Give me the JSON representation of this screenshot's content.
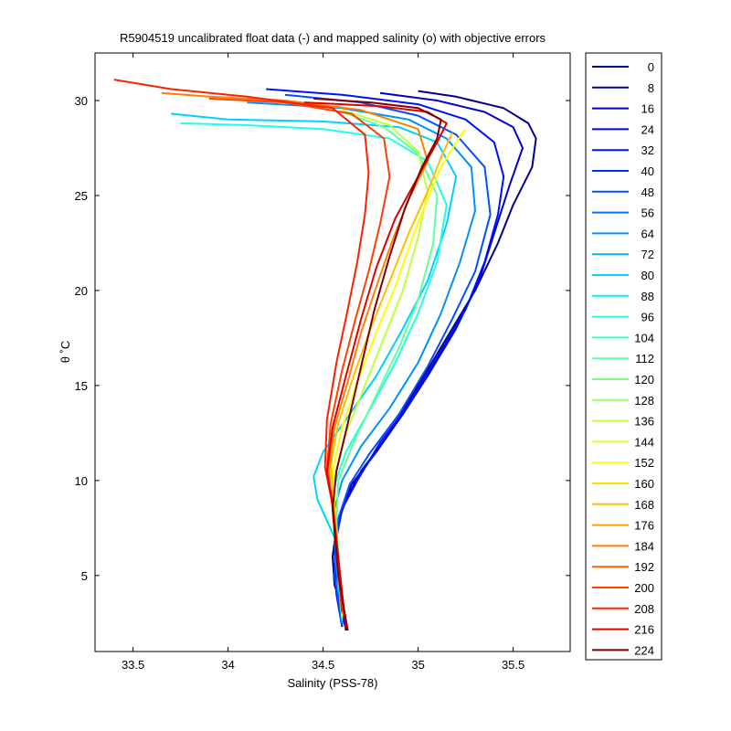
{
  "chart_data": {
    "type": "line",
    "title": "R5904519 uncalibrated float data (-) and mapped salinity (o) with objective errors",
    "xlabel": "Salinity (PSS-78)",
    "ylabel": "θ ˚C",
    "xlim": [
      33.3,
      35.8
    ],
    "ylim": [
      1.0,
      32.5
    ],
    "xticks": [
      33.5,
      34,
      34.5,
      35,
      35.5
    ],
    "xtick_labels": [
      "33.5",
      "34",
      "34.5",
      "35",
      "35.5"
    ],
    "yticks": [
      5,
      10,
      15,
      20,
      25,
      30
    ],
    "ytick_labels": [
      "5",
      "10",
      "15",
      "20",
      "25",
      "30"
    ],
    "grid": false,
    "legend_position": "outside-right",
    "colormap": "jet",
    "legend": [
      {
        "label": "0",
        "color": "#00008f"
      },
      {
        "label": "8",
        "color": "#0000b0"
      },
      {
        "label": "16",
        "color": "#0000d0"
      },
      {
        "label": "24",
        "color": "#0000f0"
      },
      {
        "label": "32",
        "color": "#0010ff"
      },
      {
        "label": "40",
        "color": "#0030ff"
      },
      {
        "label": "48",
        "color": "#0050ff"
      },
      {
        "label": "56",
        "color": "#0070ff"
      },
      {
        "label": "64",
        "color": "#0090ff"
      },
      {
        "label": "72",
        "color": "#00b0ff"
      },
      {
        "label": "80",
        "color": "#00d0ff"
      },
      {
        "label": "88",
        "color": "#00f0ff"
      },
      {
        "label": "96",
        "color": "#20ffdf"
      },
      {
        "label": "104",
        "color": "#40ffbf"
      },
      {
        "label": "112",
        "color": "#60ff9f"
      },
      {
        "label": "120",
        "color": "#80ff80"
      },
      {
        "label": "128",
        "color": "#9fff60"
      },
      {
        "label": "136",
        "color": "#bfff40"
      },
      {
        "label": "144",
        "color": "#dfff20"
      },
      {
        "label": "152",
        "color": "#ffff00"
      },
      {
        "label": "160",
        "color": "#ffdf00"
      },
      {
        "label": "168",
        "color": "#ffbf00"
      },
      {
        "label": "176",
        "color": "#ff9f00"
      },
      {
        "label": "184",
        "color": "#ff8000"
      },
      {
        "label": "192",
        "color": "#ff6000"
      },
      {
        "label": "200",
        "color": "#ff4000"
      },
      {
        "label": "208",
        "color": "#ff2000"
      },
      {
        "label": "216",
        "color": "#df0000"
      },
      {
        "label": "224",
        "color": "#800000"
      }
    ],
    "series": [
      {
        "legend_index": 0,
        "x": [
          34.62,
          34.6,
          34.56,
          34.55,
          34.57,
          34.62,
          34.7,
          34.85,
          35.0,
          35.15,
          35.3,
          35.42,
          35.5,
          35.6,
          35.62,
          35.58,
          35.45,
          35.2,
          35.0
        ],
        "y": [
          2.1,
          3.3,
          4.5,
          6.0,
          7.5,
          9.0,
          10.5,
          12.5,
          15.0,
          17.5,
          20.0,
          22.5,
          24.5,
          26.5,
          28.0,
          28.8,
          29.6,
          30.2,
          30.5
        ]
      },
      {
        "legend_index": 2,
        "x": [
          34.62,
          34.58,
          34.56,
          34.57,
          34.6,
          34.65,
          34.78,
          34.92,
          35.05,
          35.2,
          35.32,
          35.4,
          35.48,
          35.55,
          35.5,
          35.35,
          35.1,
          34.8
        ],
        "y": [
          2.2,
          3.5,
          5.0,
          7.0,
          8.5,
          9.8,
          11.5,
          13.5,
          15.5,
          18.0,
          20.5,
          23.0,
          25.5,
          27.5,
          28.6,
          29.4,
          30.0,
          30.4
        ]
      },
      {
        "legend_index": 4,
        "x": [
          34.6,
          34.57,
          34.56,
          34.6,
          34.68,
          34.8,
          34.95,
          35.1,
          35.25,
          35.35,
          35.42,
          35.45,
          35.4,
          35.25,
          35.0,
          34.6,
          34.2
        ],
        "y": [
          2.3,
          4.0,
          6.5,
          8.5,
          10.0,
          12.0,
          14.0,
          16.5,
          19.0,
          21.5,
          24.0,
          26.0,
          27.8,
          29.0,
          29.8,
          30.3,
          30.6
        ]
      },
      {
        "legend_index": 6,
        "x": [
          34.6,
          34.56,
          34.58,
          34.64,
          34.75,
          34.9,
          35.05,
          35.18,
          35.3,
          35.38,
          35.35,
          35.2,
          35.0,
          34.7,
          34.3
        ],
        "y": [
          2.4,
          5.0,
          8.0,
          9.8,
          11.5,
          13.5,
          16.0,
          18.5,
          21.0,
          24.0,
          26.5,
          28.2,
          29.2,
          29.9,
          30.3
        ]
      },
      {
        "legend_index": 8,
        "x": [
          34.6,
          34.57,
          34.56,
          34.6,
          34.7,
          34.85,
          35.0,
          35.12,
          35.22,
          35.3,
          35.28,
          35.15,
          34.95,
          34.6,
          34.1
        ],
        "y": [
          2.5,
          5.5,
          8.5,
          10.0,
          11.8,
          13.8,
          16.2,
          18.8,
          21.5,
          24.2,
          26.5,
          28.0,
          29.0,
          29.6,
          29.9
        ]
      },
      {
        "legend_index": 10,
        "x": [
          34.6,
          34.56,
          34.47,
          34.45,
          34.5,
          34.62,
          34.78,
          34.92,
          35.05,
          35.15,
          35.2,
          35.1,
          34.9,
          34.5,
          34.0,
          33.7
        ],
        "y": [
          2.6,
          7.0,
          9.0,
          10.2,
          11.5,
          13.2,
          15.5,
          18.0,
          20.5,
          23.5,
          26.0,
          27.8,
          28.6,
          28.9,
          29.0,
          29.3
        ]
      },
      {
        "legend_index": 12,
        "x": [
          34.6,
          34.56,
          34.55,
          34.62,
          34.75,
          34.88,
          35.0,
          35.1,
          35.15,
          35.05,
          34.85,
          34.5,
          34.1,
          33.75
        ],
        "y": [
          2.7,
          7.5,
          9.5,
          11.5,
          13.8,
          16.2,
          18.8,
          21.5,
          24.5,
          26.8,
          28.0,
          28.5,
          28.7,
          28.8
        ]
      },
      {
        "legend_index": 14,
        "x": [
          34.6,
          34.57,
          34.58,
          34.66,
          34.78,
          34.9,
          35.0,
          35.08,
          35.1,
          35.0,
          34.82,
          34.6
        ],
        "y": [
          2.8,
          7.8,
          10.0,
          12.0,
          14.5,
          17.0,
          19.5,
          22.5,
          25.0,
          27.2,
          28.6,
          29.4
        ]
      },
      {
        "legend_index": 17,
        "x": [
          34.6,
          34.56,
          34.56,
          34.62,
          34.72,
          34.82,
          34.92,
          35.0,
          35.05,
          35.0,
          34.85,
          34.6
        ],
        "y": [
          2.8,
          8.0,
          10.2,
          12.5,
          15.0,
          17.5,
          20.0,
          22.8,
          25.2,
          27.3,
          28.7,
          29.5
        ]
      },
      {
        "legend_index": 19,
        "x": [
          34.6,
          34.56,
          34.55,
          34.6,
          34.68,
          34.78,
          34.88,
          34.97,
          35.05,
          35.12,
          35.2,
          35.25
        ],
        "y": [
          2.9,
          8.2,
          10.5,
          12.8,
          15.2,
          17.8,
          20.2,
          22.8,
          24.8,
          26.5,
          27.8,
          28.5
        ]
      },
      {
        "legend_index": 21,
        "x": [
          34.6,
          34.56,
          34.54,
          34.58,
          34.66,
          34.75,
          34.85,
          34.95,
          35.05,
          35.12,
          35.18
        ],
        "y": [
          3.0,
          8.5,
          10.8,
          13.0,
          15.5,
          18.0,
          20.5,
          23.0,
          25.2,
          27.0,
          28.3
        ]
      },
      {
        "legend_index": 23,
        "x": [
          34.6,
          34.55,
          34.53,
          34.56,
          34.63,
          34.7,
          34.78,
          34.86,
          34.95,
          35.05,
          35.0,
          34.7,
          34.3,
          33.9,
          33.65
        ],
        "y": [
          3.0,
          8.5,
          10.5,
          12.8,
          15.2,
          17.8,
          20.2,
          22.5,
          24.8,
          26.8,
          28.5,
          29.5,
          30.0,
          30.2,
          30.4
        ]
      },
      {
        "legend_index": 25,
        "x": [
          34.6,
          34.55,
          34.52,
          34.54,
          34.6,
          34.67,
          34.74,
          34.8,
          34.85,
          34.82,
          34.65,
          34.3,
          33.9
        ],
        "y": [
          3.1,
          8.6,
          10.6,
          13.0,
          15.8,
          18.5,
          21.0,
          23.5,
          26.0,
          28.0,
          29.3,
          29.9,
          30.1
        ]
      },
      {
        "legend_index": 26,
        "x": [
          34.6,
          34.55,
          34.51,
          34.52,
          34.57,
          34.63,
          34.68,
          34.72,
          34.74,
          34.72,
          34.55,
          34.1,
          33.7,
          33.4
        ],
        "y": [
          3.1,
          8.7,
          10.7,
          13.2,
          16.2,
          19.0,
          21.5,
          24.0,
          26.2,
          28.2,
          29.6,
          30.2,
          30.6,
          31.1
        ]
      },
      {
        "legend_index": 27,
        "x": [
          34.62,
          34.55,
          34.52,
          34.55,
          34.62,
          34.7,
          34.78,
          34.88,
          35.0,
          35.1,
          35.15,
          35.05,
          34.8,
          34.4
        ],
        "y": [
          2.2,
          8.8,
          10.4,
          12.8,
          15.5,
          18.5,
          21.2,
          23.8,
          26.0,
          27.8,
          28.8,
          29.4,
          29.7,
          29.9
        ]
      },
      {
        "legend_index": 28,
        "x": [
          34.63,
          34.58,
          34.55,
          34.57,
          34.63,
          34.7,
          34.77,
          34.85,
          34.93,
          35.02,
          35.1,
          35.12,
          35.0,
          34.75,
          34.45
        ],
        "y": [
          2.1,
          5.0,
          8.5,
          10.5,
          13.0,
          16.0,
          19.0,
          21.8,
          24.3,
          26.5,
          28.0,
          29.0,
          29.6,
          29.9,
          30.1
        ]
      }
    ]
  }
}
